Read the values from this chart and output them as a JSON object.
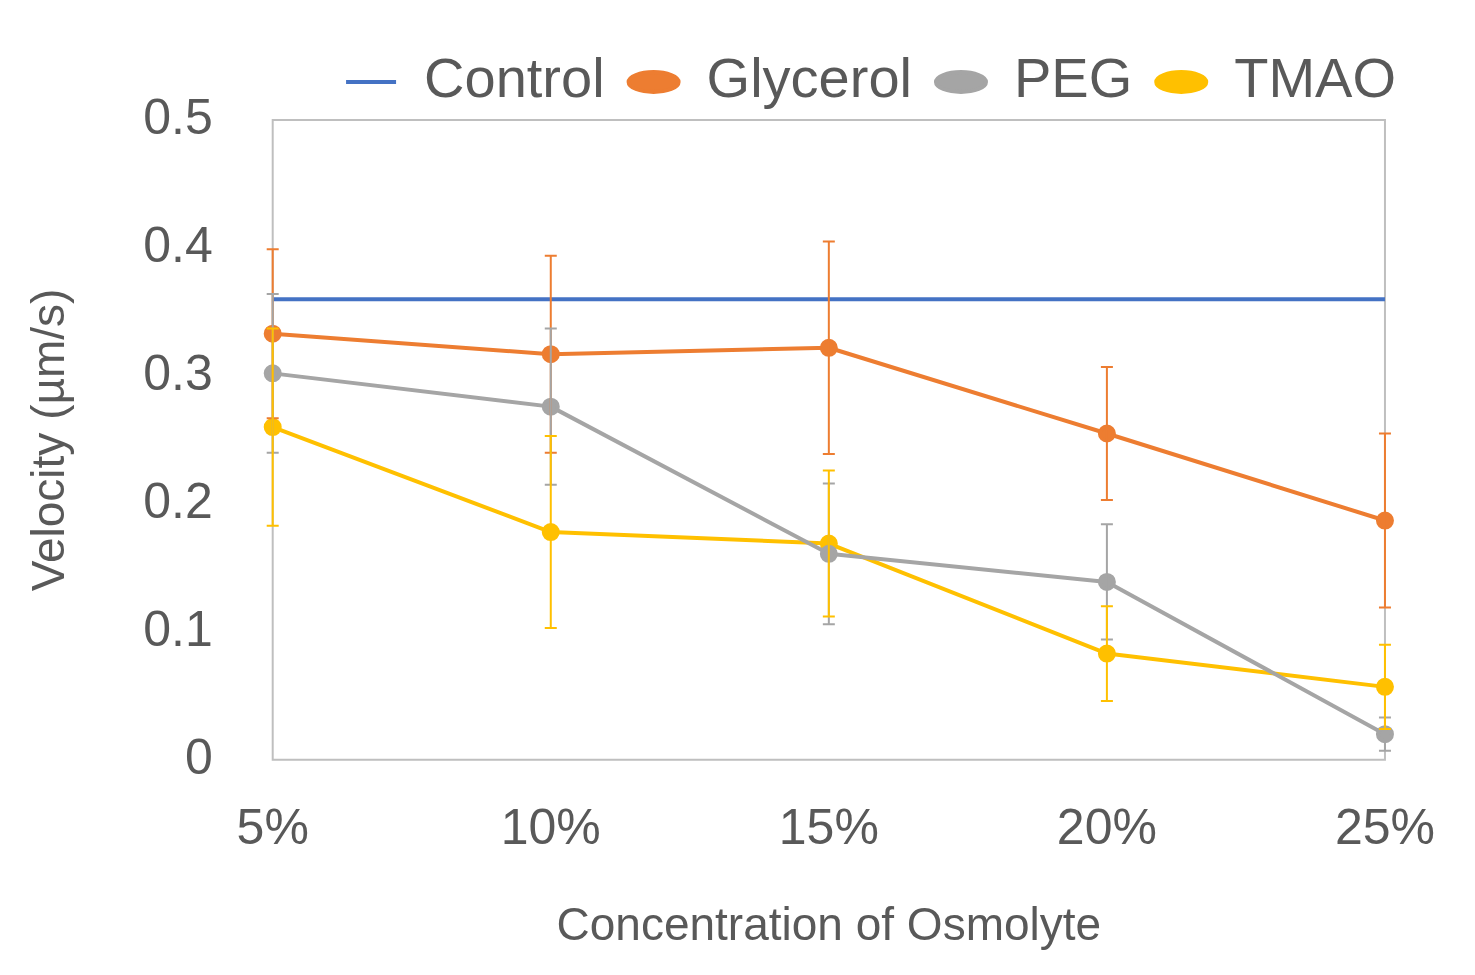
{
  "chart_data": {
    "type": "line",
    "xlabel": "Concentration of Osmolyte",
    "ylabel": "Velocity (µm/s)",
    "categories": [
      "5%",
      "10%",
      "15%",
      "20%",
      "25%"
    ],
    "ylim": [
      0,
      0.5
    ],
    "yticks": [
      0,
      0.1,
      0.2,
      0.3,
      0.4,
      0.5
    ],
    "grid": false,
    "legend": "top",
    "marker": "circle",
    "series": [
      {
        "name": "Control",
        "color": "#4472c4",
        "marker": "none",
        "values": [
          0.36,
          0.36,
          0.36,
          0.36,
          0.36
        ]
      },
      {
        "name": "Glycerol",
        "color": "#ed7d31",
        "values": [
          0.333,
          0.317,
          0.322,
          0.255,
          0.187
        ],
        "errors": [
          0.066,
          0.077,
          0.083,
          0.052,
          0.068
        ]
      },
      {
        "name": "PEG",
        "color": "#a5a5a5",
        "values": [
          0.302,
          0.276,
          0.161,
          0.139,
          0.02
        ],
        "errors": [
          0.062,
          0.061,
          0.055,
          0.045,
          0.013
        ]
      },
      {
        "name": "TMAO",
        "color": "#ffc000",
        "values": [
          0.26,
          0.178,
          0.169,
          0.083,
          0.057
        ],
        "errors": [
          0.077,
          0.075,
          0.057,
          0.037,
          0.033
        ]
      }
    ]
  }
}
